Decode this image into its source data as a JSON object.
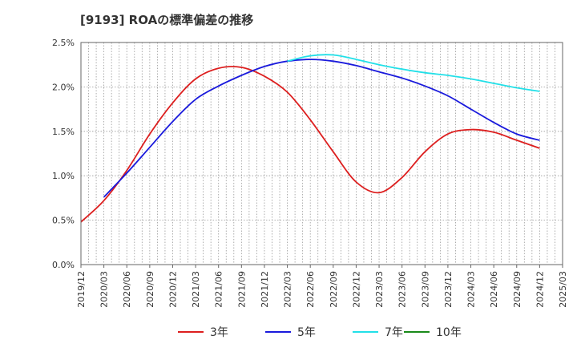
{
  "title": "[9193]  ROAの標準偏差の推移",
  "chart_data": {
    "type": "line",
    "title": "[9193]  ROAの標準偏差の推移",
    "xlabel": "",
    "ylabel": "",
    "x": [
      "2019/12",
      "2020/03",
      "2020/06",
      "2020/09",
      "2020/12",
      "2021/03",
      "2021/06",
      "2021/09",
      "2021/12",
      "2022/03",
      "2022/06",
      "2022/09",
      "2022/12",
      "2023/03",
      "2023/06",
      "2023/09",
      "2023/12",
      "2024/03",
      "2024/06",
      "2024/09",
      "2024/12",
      "2025/03"
    ],
    "ylim": [
      0,
      2.5
    ],
    "yticks": [
      "0.0%",
      "0.5%",
      "1.0%",
      "1.5%",
      "2.0%",
      "2.5%"
    ],
    "grid": true,
    "legend_position": "bottom",
    "series": [
      {
        "name": "3年",
        "color": "#dd1f1f",
        "values": [
          0.48,
          0.72,
          1.06,
          1.47,
          1.82,
          2.09,
          2.21,
          2.22,
          2.12,
          1.94,
          1.63,
          1.27,
          0.93,
          0.81,
          0.98,
          1.27,
          1.47,
          1.52,
          1.49,
          1.4,
          1.31,
          null
        ]
      },
      {
        "name": "5年",
        "color": "#1a1adc",
        "values": [
          null,
          0.76,
          1.03,
          1.32,
          1.61,
          1.86,
          2.01,
          2.13,
          2.23,
          2.29,
          2.31,
          2.29,
          2.24,
          2.17,
          2.1,
          2.01,
          1.9,
          1.75,
          1.6,
          1.47,
          1.4,
          null
        ]
      },
      {
        "name": "7年",
        "color": "#22e0e8",
        "values": [
          null,
          null,
          null,
          null,
          null,
          null,
          null,
          null,
          null,
          2.29,
          2.35,
          2.36,
          2.31,
          2.25,
          2.2,
          2.16,
          2.13,
          2.09,
          2.04,
          1.99,
          1.95,
          null
        ]
      },
      {
        "name": "10年",
        "color": "#1a8a1a",
        "values": [
          null,
          null,
          null,
          null,
          null,
          null,
          null,
          null,
          null,
          null,
          null,
          null,
          null,
          null,
          null,
          null,
          null,
          null,
          null,
          null,
          null,
          null
        ]
      }
    ]
  }
}
